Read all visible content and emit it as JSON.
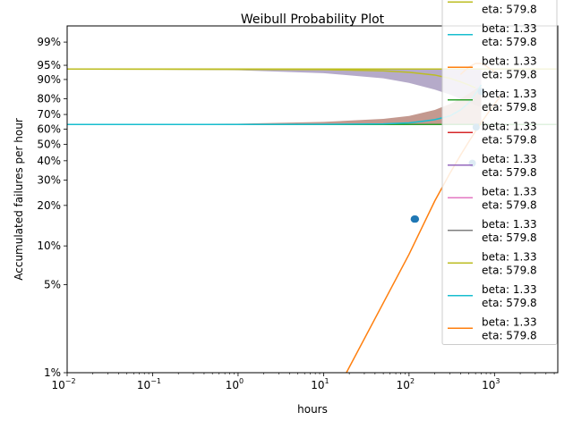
{
  "chart_data": {
    "type": "line",
    "title": "Weibull Probability Plot",
    "xlabel": "hours",
    "ylabel": "Accumulated failures per hour",
    "x_scale": "log",
    "y_scale": "weibull",
    "xlim": [
      0.01,
      5500
    ],
    "ylim": [
      0.01,
      0.998
    ],
    "x_ticks": [
      {
        "value": 0.01,
        "base": "10",
        "exp": "−2"
      },
      {
        "value": 0.1,
        "base": "10",
        "exp": "−1"
      },
      {
        "value": 1,
        "base": "10",
        "exp": "0"
      },
      {
        "value": 10,
        "base": "10",
        "exp": "1"
      },
      {
        "value": 100,
        "base": "10",
        "exp": "2"
      },
      {
        "value": 1000,
        "base": "10",
        "exp": "3"
      }
    ],
    "y_ticks": [
      {
        "value": 0.01,
        "label": "1%"
      },
      {
        "value": 0.05,
        "label": "5%"
      },
      {
        "value": 0.1,
        "label": "10%"
      },
      {
        "value": 0.2,
        "label": "20%"
      },
      {
        "value": 0.3,
        "label": "30%"
      },
      {
        "value": 0.4,
        "label": "40%"
      },
      {
        "value": 0.5,
        "label": "50%"
      },
      {
        "value": 0.6,
        "label": "60%"
      },
      {
        "value": 0.7,
        "label": "70%"
      },
      {
        "value": 0.8,
        "label": "80%"
      },
      {
        "value": 0.9,
        "label": "90%"
      },
      {
        "value": 0.95,
        "label": "95%"
      },
      {
        "value": 0.99,
        "label": "99%"
      }
    ],
    "fit": {
      "beta": 1.33,
      "eta": 579.8
    },
    "data_points": [
      {
        "x": 115,
        "y": 0.159
      },
      {
        "x": 117,
        "y": 0.159
      },
      {
        "x": 119,
        "y": 0.159
      },
      {
        "x": 550,
        "y": 0.386
      },
      {
        "x": 610,
        "y": 0.614
      },
      {
        "x": 700,
        "y": 0.841
      }
    ],
    "flat_bands": [
      {
        "x": [
          0.01,
          5500
        ],
        "y": 0.632,
        "color": "#7f7f7f"
      },
      {
        "x": [
          0.01,
          5500
        ],
        "y": 0.939,
        "color": "#bcbd22"
      }
    ],
    "confidence_bands": [
      {
        "name": "upper",
        "color": "#9c8eb7",
        "upper": [
          [
            0.01,
            0.939
          ],
          [
            10,
            0.939
          ],
          [
            100,
            0.939
          ],
          [
            700,
            0.939
          ]
        ],
        "lower": [
          [
            0.01,
            0.939
          ],
          [
            1,
            0.935
          ],
          [
            10,
            0.925
          ],
          [
            50,
            0.905
          ],
          [
            100,
            0.885
          ],
          [
            200,
            0.852
          ],
          [
            300,
            0.825
          ],
          [
            400,
            0.8
          ],
          [
            500,
            0.78
          ],
          [
            600,
            0.76
          ],
          [
            700,
            0.75
          ]
        ]
      },
      {
        "name": "lower",
        "color": "#b0776a",
        "upper": [
          [
            0.01,
            0.632
          ],
          [
            1,
            0.638
          ],
          [
            10,
            0.65
          ],
          [
            50,
            0.67
          ],
          [
            100,
            0.69
          ],
          [
            200,
            0.73
          ],
          [
            300,
            0.768
          ],
          [
            400,
            0.8
          ],
          [
            500,
            0.83
          ],
          [
            600,
            0.855
          ],
          [
            700,
            0.87
          ]
        ],
        "lower": [
          [
            0.01,
            0.632
          ],
          [
            100,
            0.632
          ],
          [
            700,
            0.632
          ]
        ]
      }
    ],
    "series": [
      {
        "color": "#2ca02c",
        "values": [
          [
            0.01,
            0.632
          ],
          [
            5500,
            0.632
          ]
        ]
      },
      {
        "color": "#bcbd22",
        "values": [
          [
            0.01,
            0.939
          ],
          [
            10,
            0.937
          ],
          [
            50,
            0.933
          ],
          [
            100,
            0.928
          ],
          [
            200,
            0.918
          ],
          [
            300,
            0.905
          ],
          [
            400,
            0.89
          ],
          [
            500,
            0.875
          ],
          [
            600,
            0.86
          ]
        ]
      },
      {
        "color": "#17becf",
        "values": [
          [
            0.01,
            0.632
          ],
          [
            10,
            0.633
          ],
          [
            50,
            0.636
          ],
          [
            100,
            0.643
          ],
          [
            150,
            0.655
          ],
          [
            200,
            0.665
          ],
          [
            300,
            0.69
          ],
          [
            400,
            0.73
          ],
          [
            500,
            0.775
          ],
          [
            600,
            0.83
          ],
          [
            700,
            0.875
          ]
        ]
      },
      {
        "color": "#ff7f0e",
        "values": [
          [
            18.5,
            0.01
          ],
          [
            100,
            0.0862
          ],
          [
            200,
            0.2151
          ],
          [
            300,
            0.3319
          ],
          [
            400,
            0.432
          ],
          [
            500,
            0.5161
          ],
          [
            600,
            0.5863
          ],
          [
            700,
            0.6449
          ],
          [
            900,
            0.7346
          ],
          [
            1200,
            0.8216
          ]
        ]
      },
      {
        "color": "#ff7f0e",
        "values": [
          [
            400,
            0.92
          ],
          [
            500,
            0.945
          ],
          [
            600,
            0.955
          ],
          [
            700,
            0.955
          ],
          [
            800,
            0.948
          ],
          [
            1000,
            0.93
          ]
        ]
      }
    ],
    "legend": {
      "placement": "top-right",
      "entries": [
        {
          "color": "#bcbd22",
          "lines": [
            "beta: 1.33",
            "eta: 579.8"
          ]
        },
        {
          "color": "#17becf",
          "lines": [
            "beta: 1.33",
            "eta: 579.8"
          ]
        },
        {
          "color": "#ff7f0e",
          "lines": [
            "beta: 1.33",
            "eta: 579.8"
          ]
        },
        {
          "color": "#2ca02c",
          "lines": [
            "beta: 1.33",
            "eta: 579.8"
          ]
        },
        {
          "color": "#d62728",
          "lines": [
            "beta: 1.33",
            "eta: 579.8"
          ]
        },
        {
          "color": "#9467bd",
          "lines": [
            "beta: 1.33",
            "eta: 579.8"
          ]
        },
        {
          "color": "#e377c2",
          "lines": [
            "beta: 1.33",
            "eta: 579.8"
          ]
        },
        {
          "color": "#7f7f7f",
          "lines": [
            "beta: 1.33",
            "eta: 579.8"
          ]
        },
        {
          "color": "#bcbd22",
          "lines": [
            "beta: 1.33",
            "eta: 579.8"
          ]
        },
        {
          "color": "#17becf",
          "lines": [
            "beta: 1.33",
            "eta: 579.8"
          ]
        },
        {
          "color": "#ff7f0e",
          "lines": [
            "beta: 1.33",
            "eta: 579.8"
          ]
        }
      ]
    },
    "point_color": "#1f77b4",
    "grid": false
  }
}
